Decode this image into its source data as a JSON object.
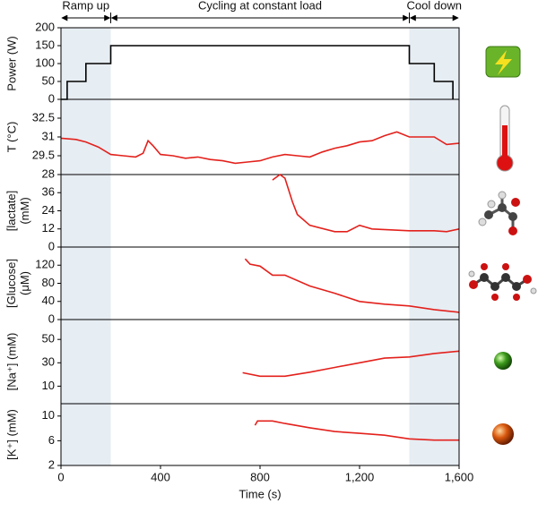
{
  "phases": [
    {
      "label": "Ramp up",
      "start": 0,
      "end": 200,
      "shaded": true
    },
    {
      "label": "Cycling at constant load",
      "start": 200,
      "end": 1400,
      "shaded": false
    },
    {
      "label": "Cool down",
      "start": 1400,
      "end": 1600,
      "shaded": true
    }
  ],
  "chart_data": [
    {
      "type": "line",
      "ylabel": [
        "Power (W)"
      ],
      "color": "#000000",
      "xlim": [
        0,
        1600
      ],
      "ylim": [
        0,
        200
      ],
      "yticks": [
        0,
        50,
        100,
        150,
        200
      ],
      "x": [
        0,
        25,
        25,
        100,
        100,
        200,
        200,
        1400,
        1400,
        1500,
        1500,
        1575,
        1575
      ],
      "values": [
        0,
        0,
        50,
        50,
        100,
        100,
        150,
        150,
        100,
        100,
        50,
        50,
        0
      ]
    },
    {
      "type": "line",
      "ylabel": [
        "T (°C)"
      ],
      "color": "#e3211c",
      "xlim": [
        0,
        1600
      ],
      "ylim": [
        28,
        34
      ],
      "yticks": [
        28,
        29.5,
        31,
        32.5
      ],
      "x": [
        0,
        60,
        100,
        150,
        200,
        250,
        300,
        330,
        350,
        370,
        400,
        450,
        500,
        550,
        600,
        650,
        700,
        750,
        800,
        850,
        900,
        950,
        1000,
        1050,
        1100,
        1150,
        1200,
        1250,
        1300,
        1350,
        1400,
        1450,
        1500,
        1550,
        1600
      ],
      "values": [
        30.9,
        30.8,
        30.6,
        30.2,
        29.6,
        29.5,
        29.4,
        29.7,
        30.7,
        30.3,
        29.6,
        29.5,
        29.3,
        29.4,
        29.2,
        29.1,
        28.9,
        29.0,
        29.1,
        29.4,
        29.6,
        29.5,
        29.4,
        29.8,
        30.1,
        30.3,
        30.6,
        30.7,
        31.1,
        31.4,
        31.0,
        31.0,
        31.0,
        30.4,
        30.5
      ]
    },
    {
      "type": "line",
      "ylabel": [
        "[lactate]",
        "(mM)"
      ],
      "color": "#e3211c",
      "xlim": [
        0,
        1600
      ],
      "ylim": [
        0,
        48
      ],
      "yticks": [
        0,
        12,
        24,
        36
      ],
      "x": [
        850,
        880,
        900,
        930,
        950,
        1000,
        1100,
        1150,
        1200,
        1250,
        1400,
        1500,
        1550,
        1600
      ],
      "values": [
        44.4,
        48,
        45.6,
        30,
        21.6,
        14.4,
        10.2,
        10.2,
        14.4,
        12,
        10.8,
        10.8,
        10.2,
        12
      ]
    },
    {
      "type": "line",
      "ylabel": [
        "[Glucose]",
        "(μM)"
      ],
      "color": "#e3211c",
      "xlim": [
        0,
        1600
      ],
      "ylim": [
        0,
        160
      ],
      "yticks": [
        0,
        40,
        80,
        120
      ],
      "x": [
        740,
        760,
        800,
        850,
        900,
        1000,
        1100,
        1200,
        1300,
        1400,
        1500,
        1600
      ],
      "values": [
        134,
        122,
        118,
        98,
        98,
        74,
        58,
        40,
        34,
        30,
        22,
        16
      ]
    },
    {
      "type": "line",
      "ylabel": [
        "[Na⁺] (mM)"
      ],
      "color": "#e3211c",
      "xlim": [
        0,
        1600
      ],
      "ylim": [
        -5,
        67
      ],
      "yticks": [
        10,
        30,
        50
      ],
      "x": [
        730,
        800,
        900,
        1000,
        1100,
        1200,
        1300,
        1400,
        1500,
        1600
      ],
      "values": [
        21.5,
        18.5,
        18.5,
        22,
        26,
        30,
        34,
        35,
        38,
        40
      ]
    },
    {
      "type": "line",
      "ylabel": [
        "[K⁺] (mM)"
      ],
      "color": "#e3211c",
      "xlim": [
        0,
        1600
      ],
      "ylim": [
        2,
        12
      ],
      "yticks": [
        2,
        6,
        10
      ],
      "x": [
        780,
        790,
        850,
        900,
        1000,
        1100,
        1200,
        1300,
        1400,
        1500,
        1600
      ],
      "values": [
        8.5,
        9.2,
        9.2,
        8.8,
        8.1,
        7.5,
        7.2,
        6.9,
        6.3,
        6.1,
        6.1
      ],
      "xticks": [
        0,
        400,
        800,
        {
          "value": 1200,
          "label": "1,200"
        },
        {
          "value": 1600,
          "label": "1,600"
        }
      ],
      "xlabel": "Time (s)"
    }
  ]
}
